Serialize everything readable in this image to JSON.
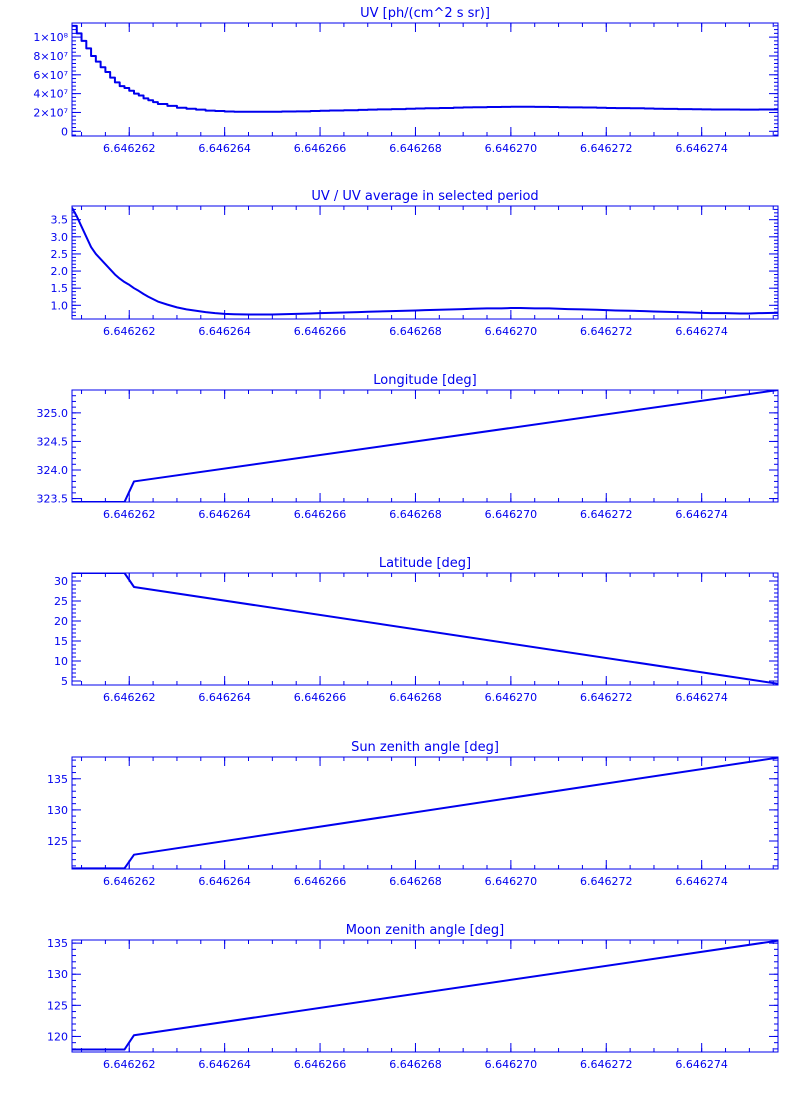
{
  "colors": {
    "axis": "#0000ee",
    "line": "#0000ee",
    "background": "#ffffff"
  },
  "chart_data": [
    {
      "type": "line",
      "title": "UV [ph/(cm^2 s sr)]",
      "xlim": [
        6.6462608,
        6.6462756
      ],
      "ylim": [
        -5000000.0,
        115000000.0
      ],
      "xticks": [
        6.646262,
        6.646264,
        6.646266,
        6.646268,
        6.64627,
        6.646272,
        6.646274
      ],
      "xtick_labels": [
        "6.646262",
        "6.646264",
        "6.646266",
        "6.646268",
        "6.646270",
        "6.646272",
        "6.646274"
      ],
      "yticks": [
        0,
        20000000,
        40000000,
        60000000,
        80000000,
        100000000
      ],
      "ytick_labels": [
        "0",
        "2×10⁷",
        "4×10⁷",
        "6×10⁷",
        "8×10⁷",
        "1×10⁸"
      ],
      "line_style": "step",
      "x": [
        6.6462608,
        6.6462609,
        6.646261,
        6.6462611,
        6.6462612,
        6.6462613,
        6.6462614,
        6.6462615,
        6.6462616,
        6.6462617,
        6.6462618,
        6.6462619,
        6.646262,
        6.6462621,
        6.6462622,
        6.6462623,
        6.6462624,
        6.6462625,
        6.6462626,
        6.6462628,
        6.646263,
        6.6462632,
        6.6462634,
        6.6462636,
        6.6462638,
        6.646264,
        6.6462642,
        6.6462645,
        6.6462648,
        6.646265,
        6.6462652,
        6.6462655,
        6.6462658,
        6.646266,
        6.6462662,
        6.6462665,
        6.6462668,
        6.646267,
        6.6462672,
        6.6462675,
        6.6462678,
        6.646268,
        6.6462682,
        6.6462685,
        6.6462688,
        6.646269,
        6.6462692,
        6.6462695,
        6.6462698,
        6.64627,
        6.6462702,
        6.6462705,
        6.6462708,
        6.646271,
        6.6462712,
        6.6462715,
        6.6462718,
        6.646272,
        6.6462722,
        6.6462725,
        6.6462728,
        6.646273,
        6.6462732,
        6.6462735,
        6.6462738,
        6.646274,
        6.6462742,
        6.6462745,
        6.6462748,
        6.646275,
        6.6462752,
        6.6462755,
        6.6462756
      ],
      "y": [
        112000000,
        104000000,
        96000000,
        88000000,
        80000000,
        74000000,
        68000000,
        63000000,
        57000000,
        52000000,
        48000000,
        46000000,
        43000000,
        40000000,
        38000000,
        35000000,
        33000000,
        31000000,
        29000000,
        27000000,
        25000000,
        24000000,
        23000000,
        22000000,
        21500000,
        21000000,
        20800000,
        20700000,
        20700000,
        20800000,
        21000000,
        21200000,
        21500000,
        21800000,
        22100000,
        22400000,
        22700000,
        23000000,
        23300000,
        23600000,
        23900000,
        24200000,
        24500000,
        24800000,
        25100000,
        25400000,
        25600000,
        25800000,
        25900000,
        26000000,
        26000000,
        25900000,
        25800000,
        25600000,
        25400000,
        25200000,
        25000000,
        24800000,
        24600000,
        24400000,
        24200000,
        24000000,
        23800000,
        23600000,
        23400000,
        23300000,
        23200000,
        23100000,
        23000000,
        23000000,
        23100000,
        23200000,
        23200000
      ]
    },
    {
      "type": "line",
      "title": "UV / UV average in selected period",
      "xlim": [
        6.6462608,
        6.6462756
      ],
      "ylim": [
        0.6,
        3.9
      ],
      "xticks": [
        6.646262,
        6.646264,
        6.646266,
        6.646268,
        6.64627,
        6.646272,
        6.646274
      ],
      "xtick_labels": [
        "6.646262",
        "6.646264",
        "6.646266",
        "6.646268",
        "6.646270",
        "6.646272",
        "6.646274"
      ],
      "yticks": [
        1.0,
        1.5,
        2.0,
        2.5,
        3.0,
        3.5
      ],
      "ytick_labels": [
        "1.0",
        "1.5",
        "2.0",
        "2.5",
        "3.0",
        "3.5"
      ],
      "line_style": "line",
      "x": [
        6.6462608,
        6.6462609,
        6.646261,
        6.6462611,
        6.6462612,
        6.6462613,
        6.6462614,
        6.6462615,
        6.6462616,
        6.6462617,
        6.6462618,
        6.6462619,
        6.646262,
        6.6462621,
        6.6462622,
        6.6462623,
        6.6462624,
        6.6462625,
        6.6462626,
        6.6462628,
        6.646263,
        6.6462632,
        6.6462634,
        6.6462636,
        6.6462638,
        6.646264,
        6.6462642,
        6.6462645,
        6.6462648,
        6.646265,
        6.6462652,
        6.6462655,
        6.6462658,
        6.646266,
        6.6462662,
        6.6462665,
        6.6462668,
        6.646267,
        6.6462672,
        6.6462675,
        6.6462678,
        6.646268,
        6.6462682,
        6.6462685,
        6.6462688,
        6.646269,
        6.6462692,
        6.6462695,
        6.6462698,
        6.64627,
        6.6462702,
        6.6462705,
        6.6462708,
        6.646271,
        6.6462712,
        6.6462715,
        6.6462718,
        6.646272,
        6.6462722,
        6.6462725,
        6.6462728,
        6.646273,
        6.6462732,
        6.6462735,
        6.6462738,
        6.646274,
        6.6462742,
        6.6462745,
        6.6462748,
        6.646275,
        6.6462752,
        6.6462755,
        6.6462756
      ],
      "y": [
        3.85,
        3.6,
        3.3,
        3.0,
        2.7,
        2.5,
        2.35,
        2.2,
        2.05,
        1.9,
        1.78,
        1.68,
        1.6,
        1.5,
        1.42,
        1.33,
        1.25,
        1.18,
        1.11,
        1.02,
        0.94,
        0.88,
        0.84,
        0.8,
        0.77,
        0.75,
        0.74,
        0.73,
        0.73,
        0.73,
        0.74,
        0.75,
        0.76,
        0.77,
        0.78,
        0.79,
        0.8,
        0.81,
        0.82,
        0.83,
        0.84,
        0.85,
        0.86,
        0.87,
        0.88,
        0.89,
        0.9,
        0.91,
        0.91,
        0.92,
        0.92,
        0.91,
        0.91,
        0.9,
        0.89,
        0.88,
        0.87,
        0.86,
        0.85,
        0.84,
        0.83,
        0.82,
        0.81,
        0.8,
        0.79,
        0.78,
        0.77,
        0.77,
        0.76,
        0.76,
        0.77,
        0.78,
        0.78
      ]
    },
    {
      "type": "line",
      "title": "Longitude [deg]",
      "xlim": [
        6.6462608,
        6.6462756
      ],
      "ylim": [
        323.44,
        325.4
      ],
      "xticks": [
        6.646262,
        6.646264,
        6.646266,
        6.646268,
        6.64627,
        6.646272,
        6.646274
      ],
      "xtick_labels": [
        "6.646262",
        "6.646264",
        "6.646266",
        "6.646268",
        "6.646270",
        "6.646272",
        "6.646274"
      ],
      "yticks": [
        323.5,
        324.0,
        324.5,
        325.0
      ],
      "ytick_labels": [
        "323.5",
        "324.0",
        "324.5",
        "325.0"
      ],
      "line_style": "line",
      "x": [
        6.6462608,
        6.6462619,
        6.6462621,
        6.6462756
      ],
      "y": [
        323.44,
        323.44,
        323.8,
        325.4
      ]
    },
    {
      "type": "line",
      "title": "Latitude [deg]",
      "xlim": [
        6.6462608,
        6.6462756
      ],
      "ylim": [
        4.0,
        32.0
      ],
      "xticks": [
        6.646262,
        6.646264,
        6.646266,
        6.646268,
        6.64627,
        6.646272,
        6.646274
      ],
      "xtick_labels": [
        "6.646262",
        "6.646264",
        "6.646266",
        "6.646268",
        "6.646270",
        "6.646272",
        "6.646274"
      ],
      "yticks": [
        5,
        10,
        15,
        20,
        25,
        30
      ],
      "ytick_labels": [
        "5",
        "10",
        "15",
        "20",
        "25",
        "30"
      ],
      "line_style": "line",
      "x": [
        6.6462608,
        6.6462619,
        6.6462621,
        6.6462756
      ],
      "y": [
        32.0,
        32.0,
        28.5,
        4.3
      ]
    },
    {
      "type": "line",
      "title": "Sun zenith angle [deg]",
      "xlim": [
        6.6462608,
        6.6462756
      ],
      "ylim": [
        120.5,
        138.5
      ],
      "xticks": [
        6.646262,
        6.646264,
        6.646266,
        6.646268,
        6.64627,
        6.646272,
        6.646274
      ],
      "xtick_labels": [
        "6.646262",
        "6.646264",
        "6.646266",
        "6.646268",
        "6.646270",
        "6.646272",
        "6.646274"
      ],
      "yticks": [
        125,
        130,
        135
      ],
      "ytick_labels": [
        "125",
        "130",
        "135"
      ],
      "line_style": "line",
      "x": [
        6.6462608,
        6.6462619,
        6.6462621,
        6.6462756
      ],
      "y": [
        120.6,
        120.6,
        122.8,
        138.4
      ]
    },
    {
      "type": "line",
      "title": "Moon zenith angle [deg]",
      "xlim": [
        6.6462608,
        6.6462756
      ],
      "ylim": [
        117.5,
        135.5
      ],
      "xticks": [
        6.646262,
        6.646264,
        6.646266,
        6.646268,
        6.64627,
        6.646272,
        6.646274
      ],
      "xtick_labels": [
        "6.646262",
        "6.646264",
        "6.646266",
        "6.646268",
        "6.646270",
        "6.646272",
        "6.646274"
      ],
      "yticks": [
        120,
        125,
        130,
        135
      ],
      "ytick_labels": [
        "120",
        "125",
        "130",
        "135"
      ],
      "line_style": "line",
      "x": [
        6.6462608,
        6.6462619,
        6.6462621,
        6.6462756
      ],
      "y": [
        117.9,
        117.9,
        120.2,
        135.4
      ]
    }
  ]
}
